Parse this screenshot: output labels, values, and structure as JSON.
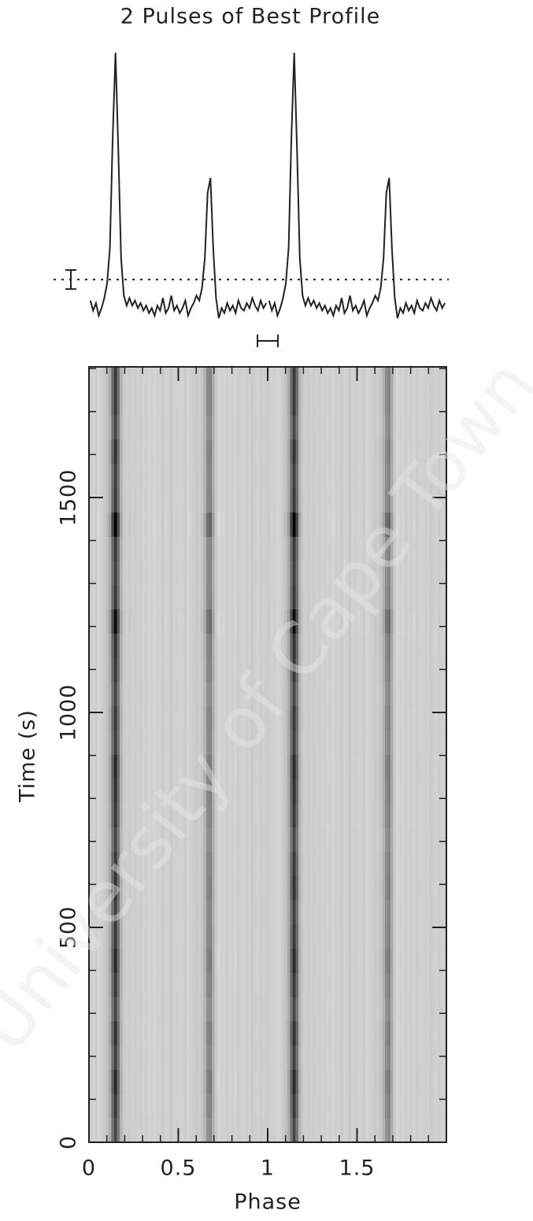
{
  "chart_data": {
    "type": "pulse-profile",
    "title": "2 Pulses of Best Profile",
    "xlabel": "Phase",
    "ylabel": "Time (s)",
    "watermark": "University of Cape Town",
    "xlim": [
      0,
      2
    ],
    "xticks": [
      0,
      0.5,
      1,
      1.5
    ],
    "xminor_step": 0.1,
    "ylim": [
      0,
      1804
    ],
    "yticks": [
      0,
      500,
      1000,
      1500
    ],
    "yminor_step": 100,
    "profile_ylim": [
      -0.1,
      1.05
    ],
    "mean_level": 0.094,
    "error": 0.038,
    "phase_bar": {
      "center": 1.0,
      "halfwidth": 0.057
    },
    "profile": [
      0.01,
      -0.03,
      0.0,
      -0.05,
      -0.02,
      0.02,
      0.08,
      0.22,
      0.66,
      1.0,
      0.62,
      0.18,
      0.03,
      -0.01,
      0.02,
      -0.01,
      0.01,
      -0.02,
      0.0,
      -0.03,
      -0.01,
      -0.04,
      -0.02,
      -0.05,
      -0.01,
      -0.03,
      0.02,
      -0.04,
      -0.02,
      0.03,
      -0.03,
      -0.01,
      -0.04,
      -0.02,
      0.01,
      -0.05,
      -0.02,
      0.0,
      0.03,
      0.01,
      0.06,
      0.18,
      0.44,
      0.5,
      0.22,
      0.02,
      -0.06,
      -0.02,
      -0.04,
      0.0,
      -0.03,
      -0.01,
      -0.04,
      0.01,
      -0.02,
      -0.03,
      0.0,
      -0.02,
      0.02,
      -0.01,
      -0.03,
      0.01,
      -0.02,
      0.0
    ],
    "subint_strength": [
      0.9,
      1.0,
      1.1,
      0.95,
      1.05,
      0.9,
      1.0,
      1.1,
      1.0,
      0.95,
      1.05,
      1.0,
      0.9,
      1.0,
      1.05,
      1.1,
      0.95,
      1.0,
      0.9,
      1.0,
      1.05,
      1.3,
      1.0,
      0.95,
      1.0,
      1.4,
      1.0,
      0.95,
      1.05,
      0.9,
      1.0,
      1.0
    ]
  }
}
